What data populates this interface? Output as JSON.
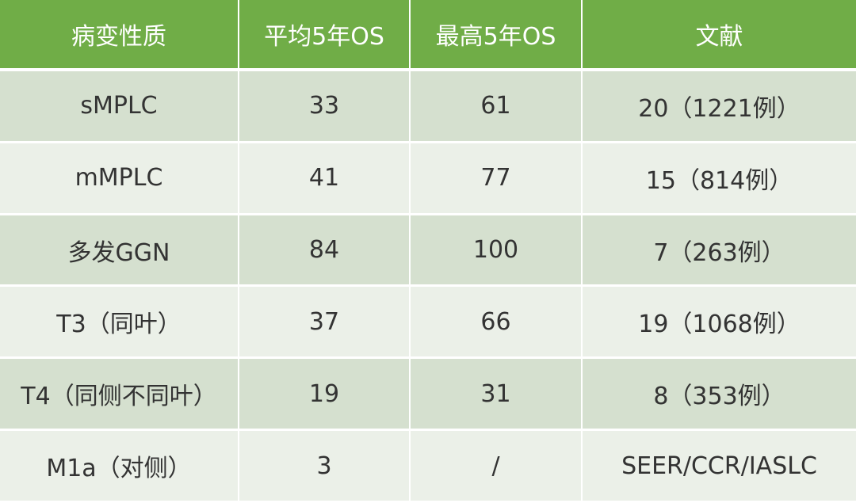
{
  "colors": {
    "header": "#70AD47",
    "row_odd": "#D5E0CF",
    "row_even": "#EBF0E8"
  },
  "table": {
    "headers": [
      "病变性质",
      "平均5年OS",
      "最高5年OS",
      "文献"
    ],
    "rows": [
      [
        "sMPLC",
        "33",
        "61",
        "20（1221例）"
      ],
      [
        "mMPLC",
        "41",
        "77",
        "15（814例）"
      ],
      [
        "多发GGN",
        "84",
        "100",
        "7（263例）"
      ],
      [
        "T3（同叶）",
        "37",
        "66",
        "19（1068例）"
      ],
      [
        "T4（同侧不同叶）",
        "19",
        "31",
        "8（353例）"
      ],
      [
        "M1a（对侧）",
        "3",
        "/",
        "SEER/CCR/IASLC"
      ]
    ]
  }
}
